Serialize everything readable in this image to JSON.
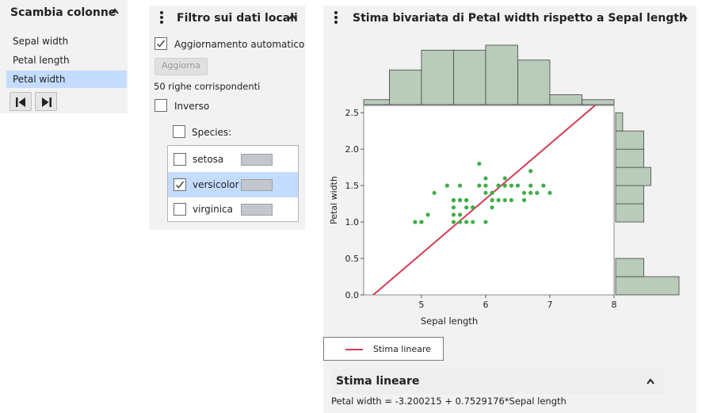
{
  "swap_panel": {
    "title": "Scambia colonne",
    "columns": [
      "Sepal width",
      "Petal length",
      "Petal width"
    ],
    "selected_index": 2,
    "prev_button_icon": "skip-back-icon",
    "next_button_icon": "skip-forward-icon"
  },
  "filter_panel": {
    "title": "Filtro sui dati locali",
    "auto_update_label": "Aggiornamento automatico",
    "auto_update_checked": true,
    "update_button": "Aggiorna",
    "match_count": "50 righe corrispondenti",
    "invert_label": "Inverso",
    "species_label": "Species:",
    "species": [
      {
        "name": "setosa",
        "checked": false
      },
      {
        "name": "versicolor",
        "checked": true
      },
      {
        "name": "virginica",
        "checked": false
      }
    ]
  },
  "bivariate_panel": {
    "title": "Stima bivariata di Petal width rispetto a Sepal length",
    "legend_label": "Stima lineare",
    "fit_section_title": "Stima lineare",
    "fit_equation": "Petal width = -3.200215 + 0.7529176*Sepal length"
  },
  "colors": {
    "selection": "#c4dcff",
    "histogram_fill": "#b9cbb9",
    "point_color": "#3fae49",
    "fit_line": "#d43c55",
    "panel_bg": "#f2f2f2"
  },
  "chart_data": {
    "type": "scatter",
    "xlabel": "Sepal length",
    "ylabel": "Petal width",
    "xlim": [
      4.1,
      8.0
    ],
    "ylim": [
      0.0,
      2.6
    ],
    "xticks": [
      5,
      6,
      7,
      8
    ],
    "yticks": [
      "0.0",
      "0.5",
      "1.0",
      "1.5",
      "2.0",
      "2.5"
    ],
    "points": [
      [
        4.9,
        1.0
      ],
      [
        5.0,
        1.0
      ],
      [
        5.1,
        1.1
      ],
      [
        5.2,
        1.4
      ],
      [
        5.4,
        1.5
      ],
      [
        5.5,
        1.3
      ],
      [
        5.5,
        1.2
      ],
      [
        5.5,
        1.1
      ],
      [
        5.5,
        1.0
      ],
      [
        5.6,
        1.3
      ],
      [
        5.6,
        1.1
      ],
      [
        5.6,
        1.0
      ],
      [
        5.6,
        1.5
      ],
      [
        5.7,
        1.3
      ],
      [
        5.7,
        1.2
      ],
      [
        5.7,
        1.0
      ],
      [
        5.8,
        1.0
      ],
      [
        5.8,
        1.2
      ],
      [
        5.9,
        1.5
      ],
      [
        5.9,
        1.8
      ],
      [
        6.0,
        1.6
      ],
      [
        6.0,
        1.5
      ],
      [
        6.0,
        1.0
      ],
      [
        6.0,
        1.4
      ],
      [
        6.1,
        1.4
      ],
      [
        6.1,
        1.3
      ],
      [
        6.1,
        1.2
      ],
      [
        6.2,
        1.5
      ],
      [
        6.2,
        1.3
      ],
      [
        6.3,
        1.6
      ],
      [
        6.3,
        1.5
      ],
      [
        6.3,
        1.3
      ],
      [
        6.4,
        1.5
      ],
      [
        6.4,
        1.3
      ],
      [
        6.5,
        1.5
      ],
      [
        6.6,
        1.4
      ],
      [
        6.6,
        1.3
      ],
      [
        6.7,
        1.7
      ],
      [
        6.7,
        1.5
      ],
      [
        6.7,
        1.4
      ],
      [
        6.8,
        1.4
      ],
      [
        6.9,
        1.5
      ],
      [
        7.0,
        1.4
      ],
      [
        5.0,
        1.0
      ],
      [
        5.8,
        1.2
      ],
      [
        6.2,
        1.5
      ],
      [
        5.7,
        1.3
      ],
      [
        5.5,
        1.3
      ],
      [
        5.6,
        1.3
      ],
      [
        6.1,
        1.4
      ]
    ],
    "fit_line": {
      "intercept": -3.200215,
      "slope": 0.7529176
    },
    "x_histogram": {
      "bin_edges": [
        4.0,
        4.5,
        5.0,
        5.5,
        6.0,
        6.5,
        7.0,
        7.5,
        8.0
      ],
      "counts": [
        1,
        7,
        11,
        11,
        12,
        9,
        2,
        1
      ]
    },
    "y_histogram": {
      "bin_edges": [
        0.0,
        0.25,
        0.5,
        0.75,
        1.0,
        1.25,
        1.5,
        1.75,
        2.0,
        2.25,
        2.5
      ],
      "counts": [
        9,
        4,
        0,
        0,
        4,
        4,
        5,
        4,
        4,
        1
      ]
    }
  }
}
